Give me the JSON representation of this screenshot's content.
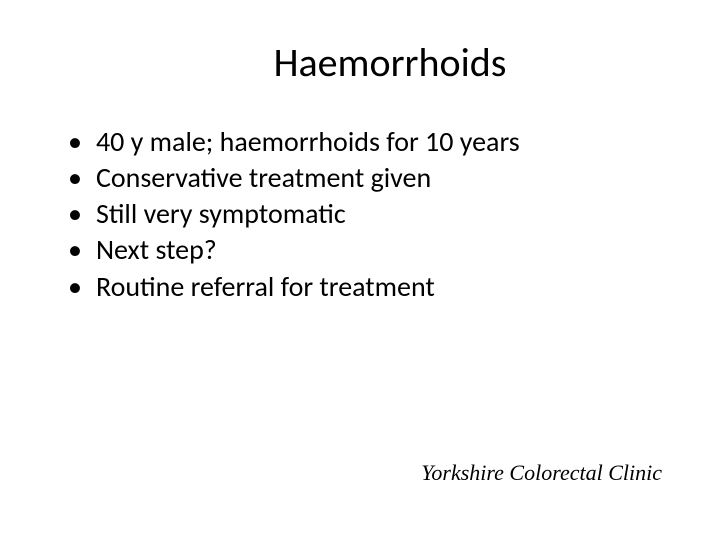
{
  "slide": {
    "title": "Haemorrhoids",
    "bullets": [
      "40 y male; haemorrhoids for 10 years",
      "Conservative treatment given",
      "Still very symptomatic",
      "Next step?",
      "Routine referral for treatment"
    ],
    "footer": "Yorkshire Colorectal Clinic"
  },
  "style": {
    "background_color": "#ffffff",
    "title_fontsize": 40,
    "title_color": "#000000",
    "bullet_fontsize": 28,
    "bullet_color": "#000000",
    "footer_fontsize": 22,
    "footer_color": "#000000",
    "footer_font_family": "Times New Roman",
    "footer_font_style": "italic",
    "body_font_family": "Calibri"
  }
}
